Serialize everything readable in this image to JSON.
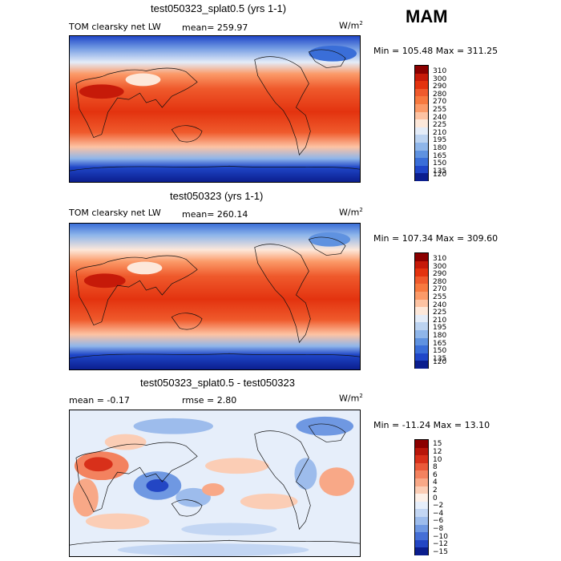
{
  "season": "MAM",
  "chart_data": [
    {
      "type": "heatmap",
      "title": "test050323_splat0.5 (yrs 1-1)",
      "variable": "TOM clearsky net LW",
      "mean_text": "mean= 259.97",
      "units": "W/m",
      "units_exp": "2",
      "minmax_text": "Min = 105.48 Max = 311.25",
      "levels": [
        "310",
        "300",
        "290",
        "280",
        "270",
        "255",
        "240",
        "225",
        "210",
        "195",
        "180",
        "165",
        "150",
        "135",
        "120"
      ],
      "colors": [
        "#8b0000",
        "#c61a09",
        "#e3330f",
        "#ef5a2c",
        "#f7793f",
        "#fb9a68",
        "#fdc3a3",
        "#fde8da",
        "#e4ecf8",
        "#bcd3f1",
        "#8fb6ea",
        "#5f92e0",
        "#3a6ed8",
        "#1f46c8",
        "#0b1e8e"
      ]
    },
    {
      "type": "heatmap",
      "title": "test050323 (yrs 1-1)",
      "variable": "TOM clearsky net LW",
      "mean_text": "mean= 260.14",
      "units": "W/m",
      "units_exp": "2",
      "minmax_text": "Min = 107.34 Max = 309.60",
      "levels": [
        "310",
        "300",
        "290",
        "280",
        "270",
        "255",
        "240",
        "225",
        "210",
        "195",
        "180",
        "165",
        "150",
        "135",
        "120"
      ],
      "colors": [
        "#8b0000",
        "#c61a09",
        "#e3330f",
        "#ef5a2c",
        "#f7793f",
        "#fb9a68",
        "#fdc3a3",
        "#fde8da",
        "#e4ecf8",
        "#bcd3f1",
        "#8fb6ea",
        "#5f92e0",
        "#3a6ed8",
        "#1f46c8",
        "#0b1e8e"
      ]
    },
    {
      "type": "heatmap",
      "title": "test050323_splat0.5 - test050323",
      "mean_text": "mean =   -0.17",
      "rmse_text": "rmse =    2.80",
      "units": "W/m",
      "units_exp": "2",
      "minmax_text": "Min = -11.24 Max =   13.10",
      "levels": [
        "15",
        "12",
        "10",
        "8",
        "6",
        "4",
        "2",
        "0",
        "−2",
        "−4",
        "−6",
        "−8",
        "−10",
        "−12",
        "−15"
      ],
      "colors": [
        "#8b0000",
        "#b8160a",
        "#d8301a",
        "#ea5a3a",
        "#f3825f",
        "#f8a887",
        "#fbcdb5",
        "#fdf0e8",
        "#e6eefa",
        "#c3d6f3",
        "#9dbcec",
        "#6f98e2",
        "#456fd6",
        "#2346c4",
        "#0b1e8e"
      ]
    }
  ]
}
